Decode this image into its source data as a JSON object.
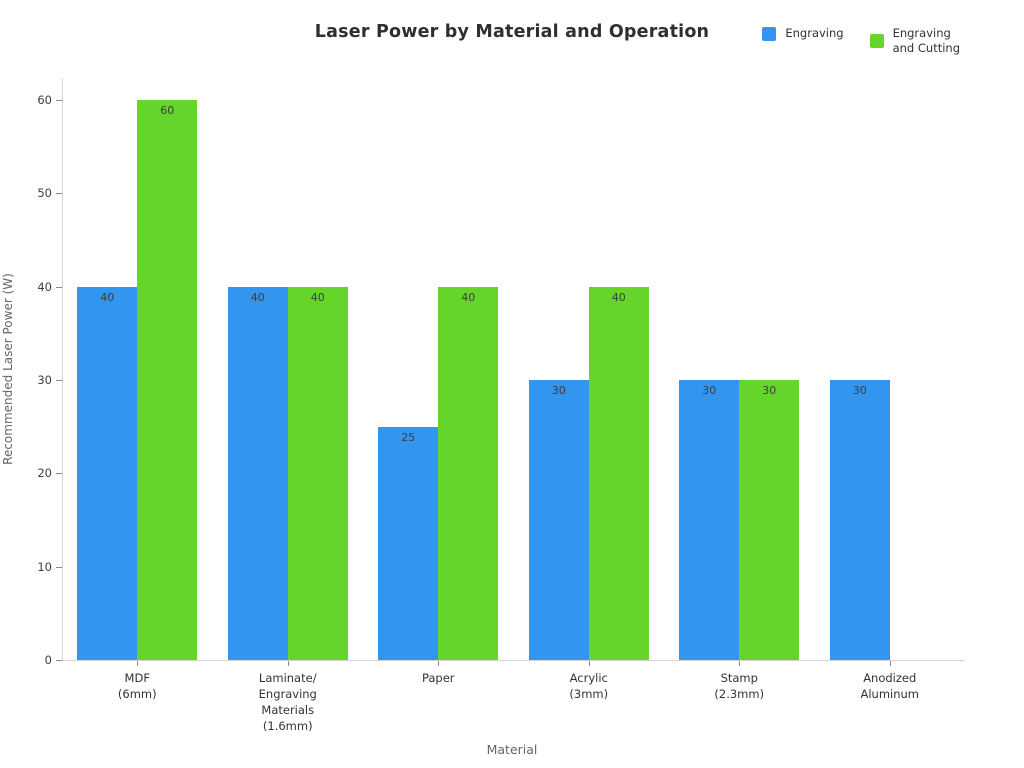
{
  "title": "Laser Power by Material and Operation",
  "legend": {
    "items": [
      {
        "label": "Engraving",
        "color": "#3295EF"
      },
      {
        "label": "Engraving\nand Cutting",
        "color": "#65D52B"
      }
    ]
  },
  "chart_data": {
    "type": "bar",
    "title": "Laser Power by Material and Operation",
    "xlabel": "Material",
    "ylabel": "Recommended Laser Power (W)",
    "categories": [
      "MDF\n(6mm)",
      "Laminate/\nEngraving\nMaterials\n(1.6mm)",
      "Paper",
      "Acrylic\n(3mm)",
      "Stamp\n(2.3mm)",
      "Anodized\nAluminum"
    ],
    "series": [
      {
        "name": "Engraving",
        "color": "#3295EF",
        "values": [
          40,
          40,
          25,
          30,
          30,
          30
        ]
      },
      {
        "name": "Engraving and Cutting",
        "color": "#65D52B",
        "values": [
          60,
          40,
          40,
          40,
          30,
          null
        ]
      }
    ],
    "ylim": [
      0,
      60
    ],
    "yticks": [
      0,
      10,
      20,
      30,
      40,
      50,
      60
    ],
    "grid": false,
    "legend_position": "top-right",
    "value_labels": true,
    "background": "#ffffff"
  }
}
